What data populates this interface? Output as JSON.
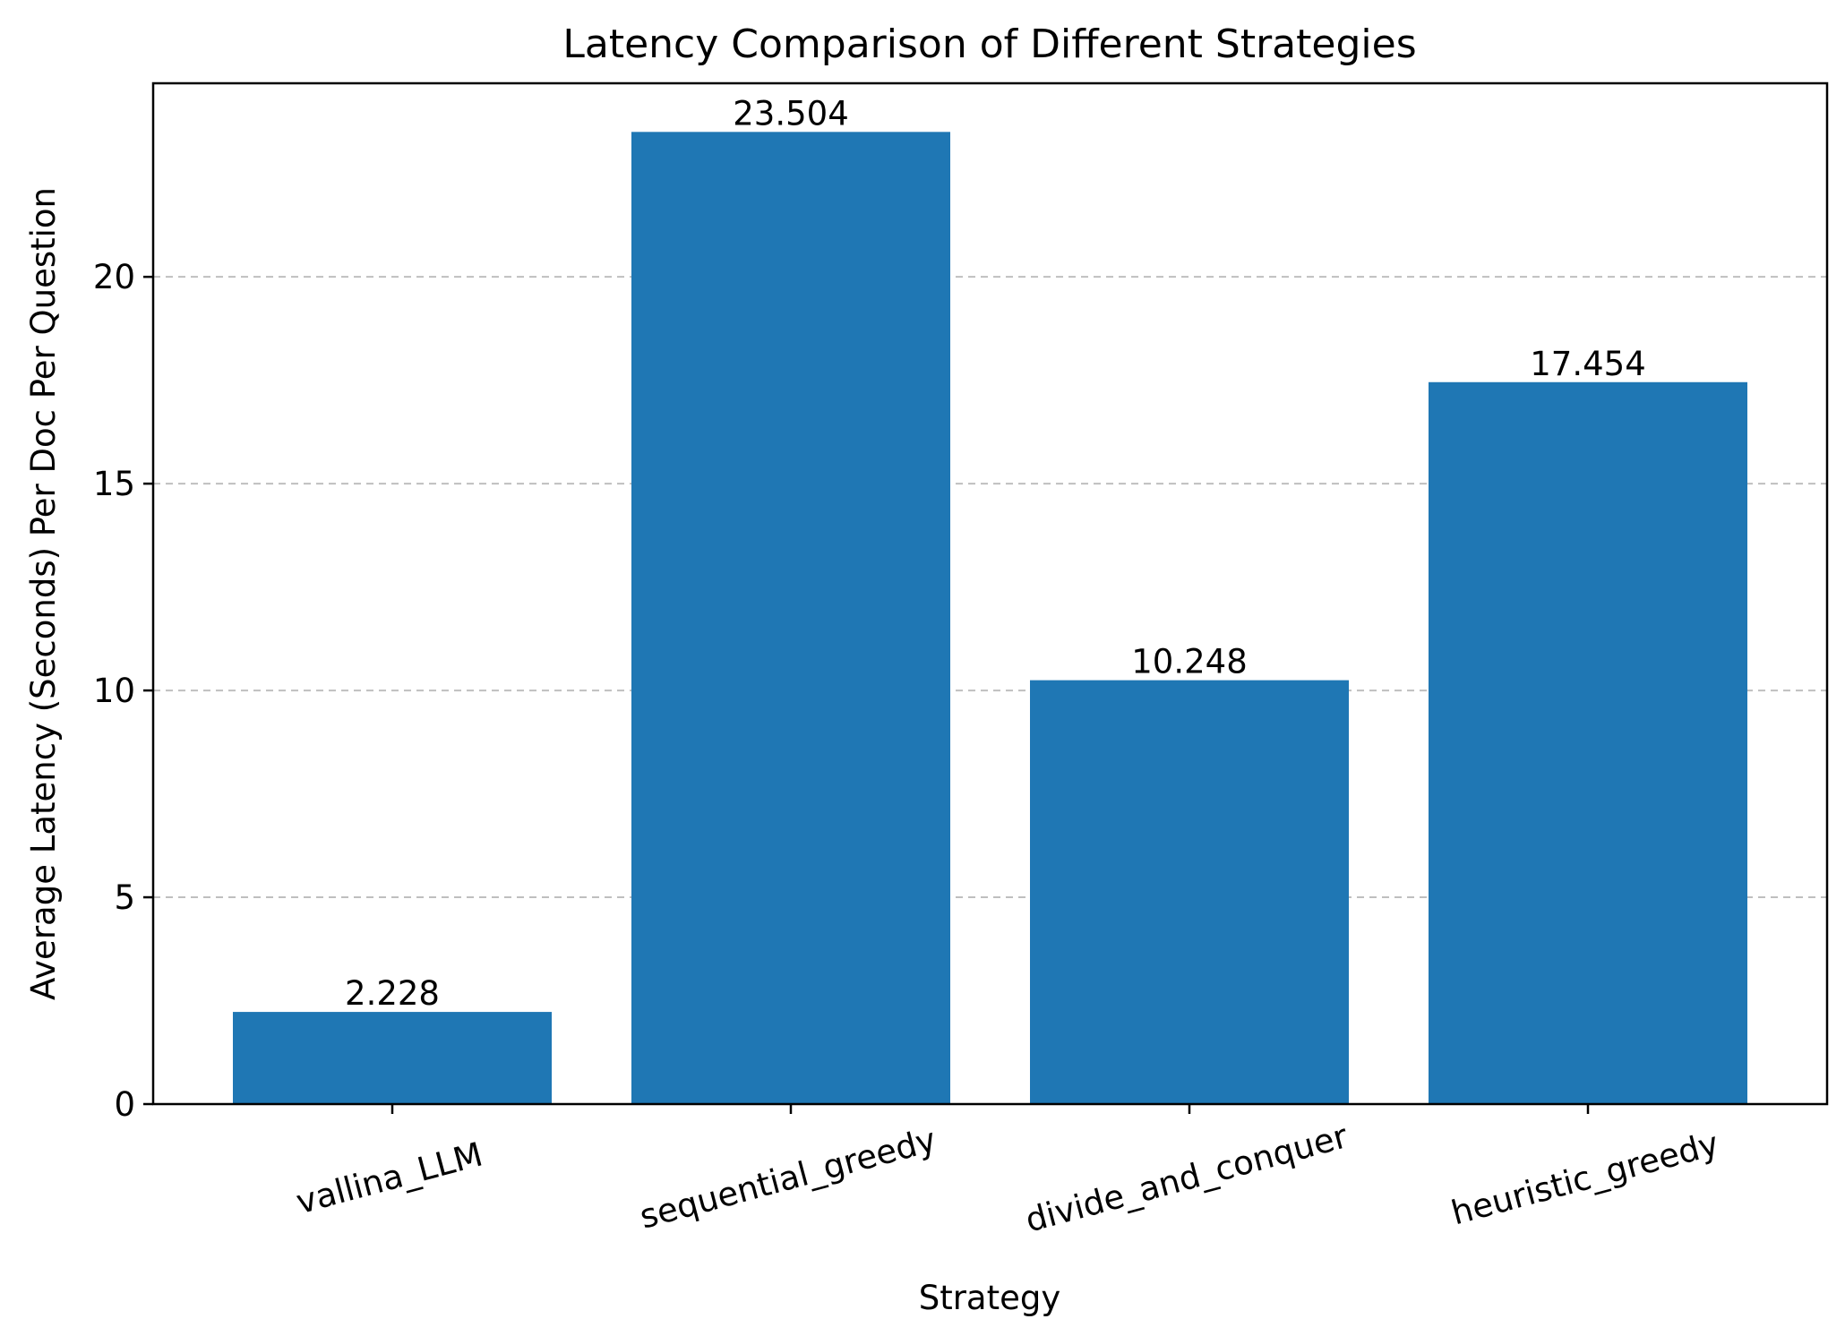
{
  "chart_data": {
    "type": "bar",
    "title": "Latency Comparison of Different Strategies",
    "xlabel": "Strategy",
    "ylabel": "Average Latency (Seconds) Per Doc Per Question",
    "categories": [
      "vallina_LLM",
      "sequential_greedy",
      "divide_and_conquer",
      "heuristic_greedy"
    ],
    "values": [
      2.228,
      23.504,
      10.248,
      17.454
    ],
    "data_labels": [
      "2.228",
      "23.504",
      "10.248",
      "17.454"
    ],
    "yticks": [
      0,
      5,
      10,
      15,
      20
    ],
    "ylim": [
      0,
      24.68
    ],
    "grid": "y-dashed",
    "bar_color": "#1f77b4"
  }
}
